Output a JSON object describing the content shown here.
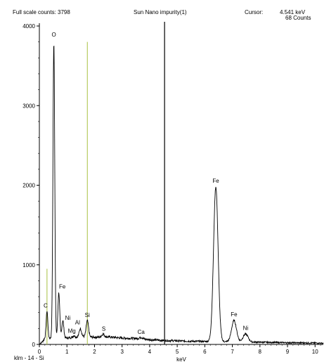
{
  "header": {
    "full_scale": "Full scale counts: 3798",
    "title": "Sun Nano impurity(1)",
    "cursor_label": "Cursor:",
    "cursor_kev": "4.541 keV",
    "cursor_counts": "68 Counts"
  },
  "footer": {
    "sample": "klm - 14 - Si"
  },
  "chart_data": {
    "type": "line",
    "title": "Sun Nano impurity(1)",
    "xlabel": "keV",
    "ylabel": "",
    "xlim": [
      0,
      10.3
    ],
    "ylim": [
      0,
      4000
    ],
    "x_ticks": [
      0,
      1,
      2,
      3,
      4,
      5,
      6,
      7,
      8,
      9,
      10
    ],
    "y_ticks": [
      0,
      1000,
      2000,
      3000,
      4000
    ],
    "full_scale_counts": 3798,
    "cursor": {
      "x": 4.541,
      "y": 68
    },
    "marker_lines": [
      {
        "element": "C",
        "x": 0.277,
        "height": 950,
        "color": "#a8c040"
      },
      {
        "element": "Si",
        "x": 1.74,
        "height": 3800,
        "color": "#a8c040"
      }
    ],
    "peaks": [
      {
        "label": "O",
        "x": 0.525,
        "y": 3798
      },
      {
        "label": "C",
        "x": 0.277,
        "y": 420
      },
      {
        "label": "Fe",
        "x": 0.705,
        "y": 650
      },
      {
        "label": "Ni",
        "x": 0.851,
        "y": 300
      },
      {
        "label": "Mg",
        "x": 1.254,
        "y": 110
      },
      {
        "label": "Al",
        "x": 1.487,
        "y": 200
      },
      {
        "label": "Si",
        "x": 1.74,
        "y": 300
      },
      {
        "label": "S",
        "x": 2.31,
        "y": 130
      },
      {
        "label": "Ca",
        "x": 3.69,
        "y": 90
      },
      {
        "label": "Fe",
        "x": 6.4,
        "y": 1980
      },
      {
        "label": "Fe",
        "x": 7.06,
        "y": 300
      },
      {
        "label": "Ni",
        "x": 7.48,
        "y": 130
      }
    ],
    "background": [
      [
        0.0,
        5
      ],
      [
        0.1,
        30
      ],
      [
        0.2,
        80
      ],
      [
        1.0,
        80
      ],
      [
        1.5,
        100
      ],
      [
        2.0,
        90
      ],
      [
        2.5,
        95
      ],
      [
        3.0,
        80
      ],
      [
        3.5,
        75
      ],
      [
        4.0,
        60
      ],
      [
        4.5,
        50
      ],
      [
        5.0,
        45
      ],
      [
        5.5,
        40
      ],
      [
        6.0,
        38
      ],
      [
        7.0,
        33
      ],
      [
        8.0,
        28
      ],
      [
        9.0,
        22
      ],
      [
        10.0,
        18
      ],
      [
        10.3,
        16
      ]
    ]
  }
}
